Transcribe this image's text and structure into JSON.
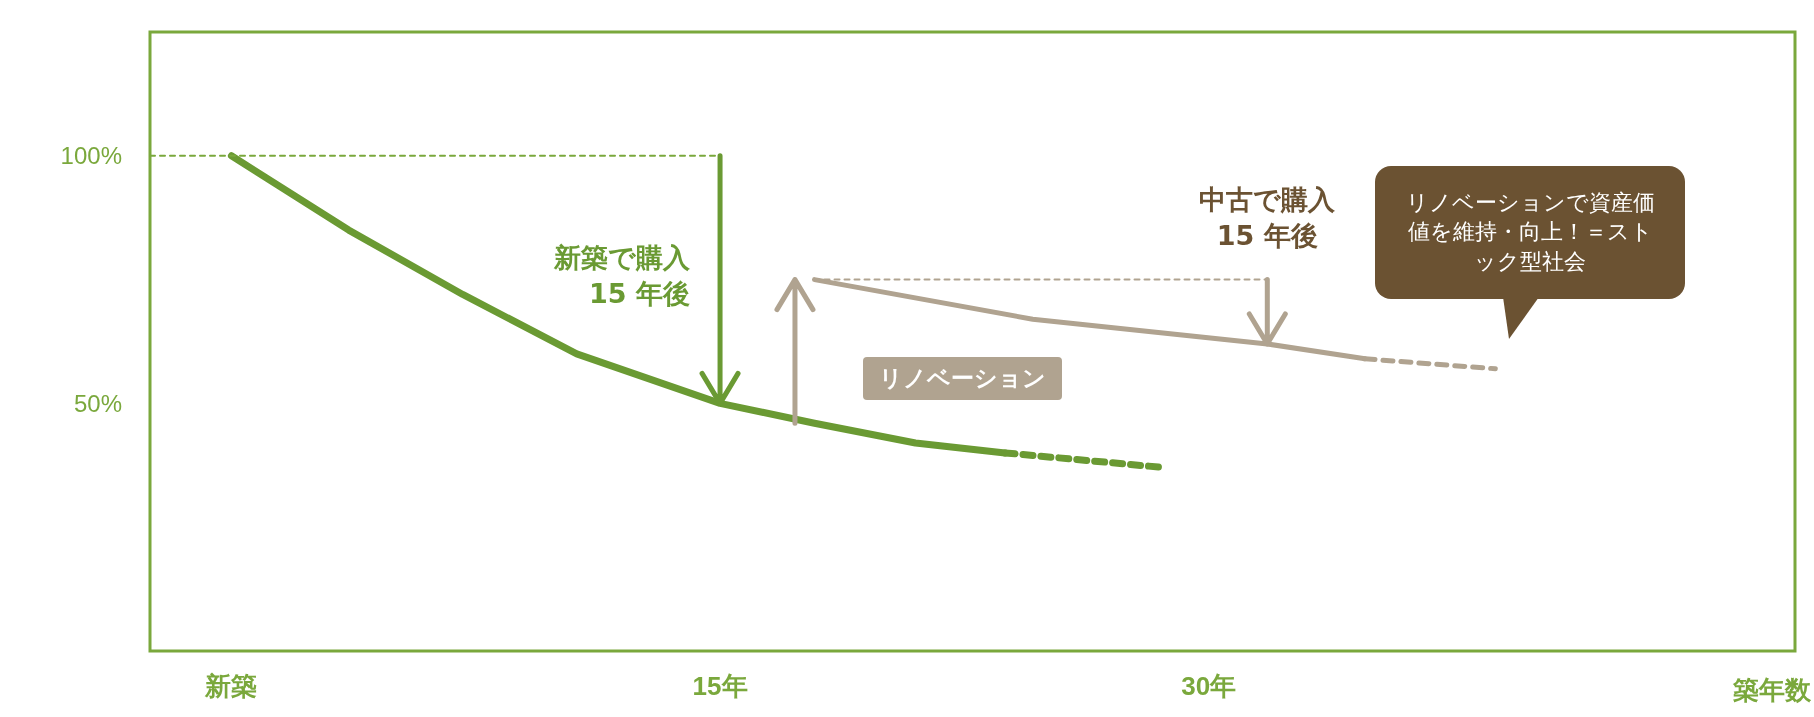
{
  "chart_data": {
    "type": "line",
    "xlabel": "築年数",
    "xlim": [
      -2.5,
      48
    ],
    "xticks": [
      {
        "value": 0,
        "label": "新築"
      },
      {
        "value": 15,
        "label": "15年"
      },
      {
        "value": 30,
        "label": "30年"
      }
    ],
    "ylim": [
      0,
      125
    ],
    "yticks": [
      {
        "value": 100,
        "label": "100%"
      },
      {
        "value": 50,
        "label": "50%"
      }
    ],
    "series": [
      {
        "color": "#6a9a33",
        "line_style": "solid",
        "x": [
          0,
          3.6,
          7.1,
          10.6,
          15,
          17.9,
          21,
          23.75
        ],
        "values": [
          100,
          85,
          72,
          60,
          50,
          46,
          42,
          40
        ]
      },
      {
        "color": "#6a9a33",
        "line_style": "dashed",
        "x": [
          23.75,
          28.7
        ],
        "values": [
          40,
          37
        ]
      },
      {
        "color": "#b0a390",
        "line_style": "solid",
        "x": [
          17.9,
          24.6,
          31.8,
          34.8
        ],
        "values": [
          75,
          67,
          62,
          59
        ]
      },
      {
        "color": "#b0a390",
        "line_style": "dashed",
        "x": [
          34.8,
          38.8
        ],
        "values": [
          59,
          57
        ]
      },
      {
        "color": "#7aa83c",
        "line_style": "dotted",
        "x": [
          -2.5,
          15
        ],
        "values": [
          100,
          100
        ]
      },
      {
        "color": "#b0a390",
        "line_style": "dotted",
        "x": [
          17.9,
          31.8
        ],
        "values": [
          75,
          75
        ]
      }
    ],
    "annotations": [
      "新築で購入15 年後",
      {
        "text": "中古で購入15 年後",
        "x": 31.8,
        "y": 75
      },
      "リノベーション",
      "リノベーションで資産価値を維持・向上！＝ストック型社会"
    ],
    "grid": false,
    "marker": "none"
  }
}
